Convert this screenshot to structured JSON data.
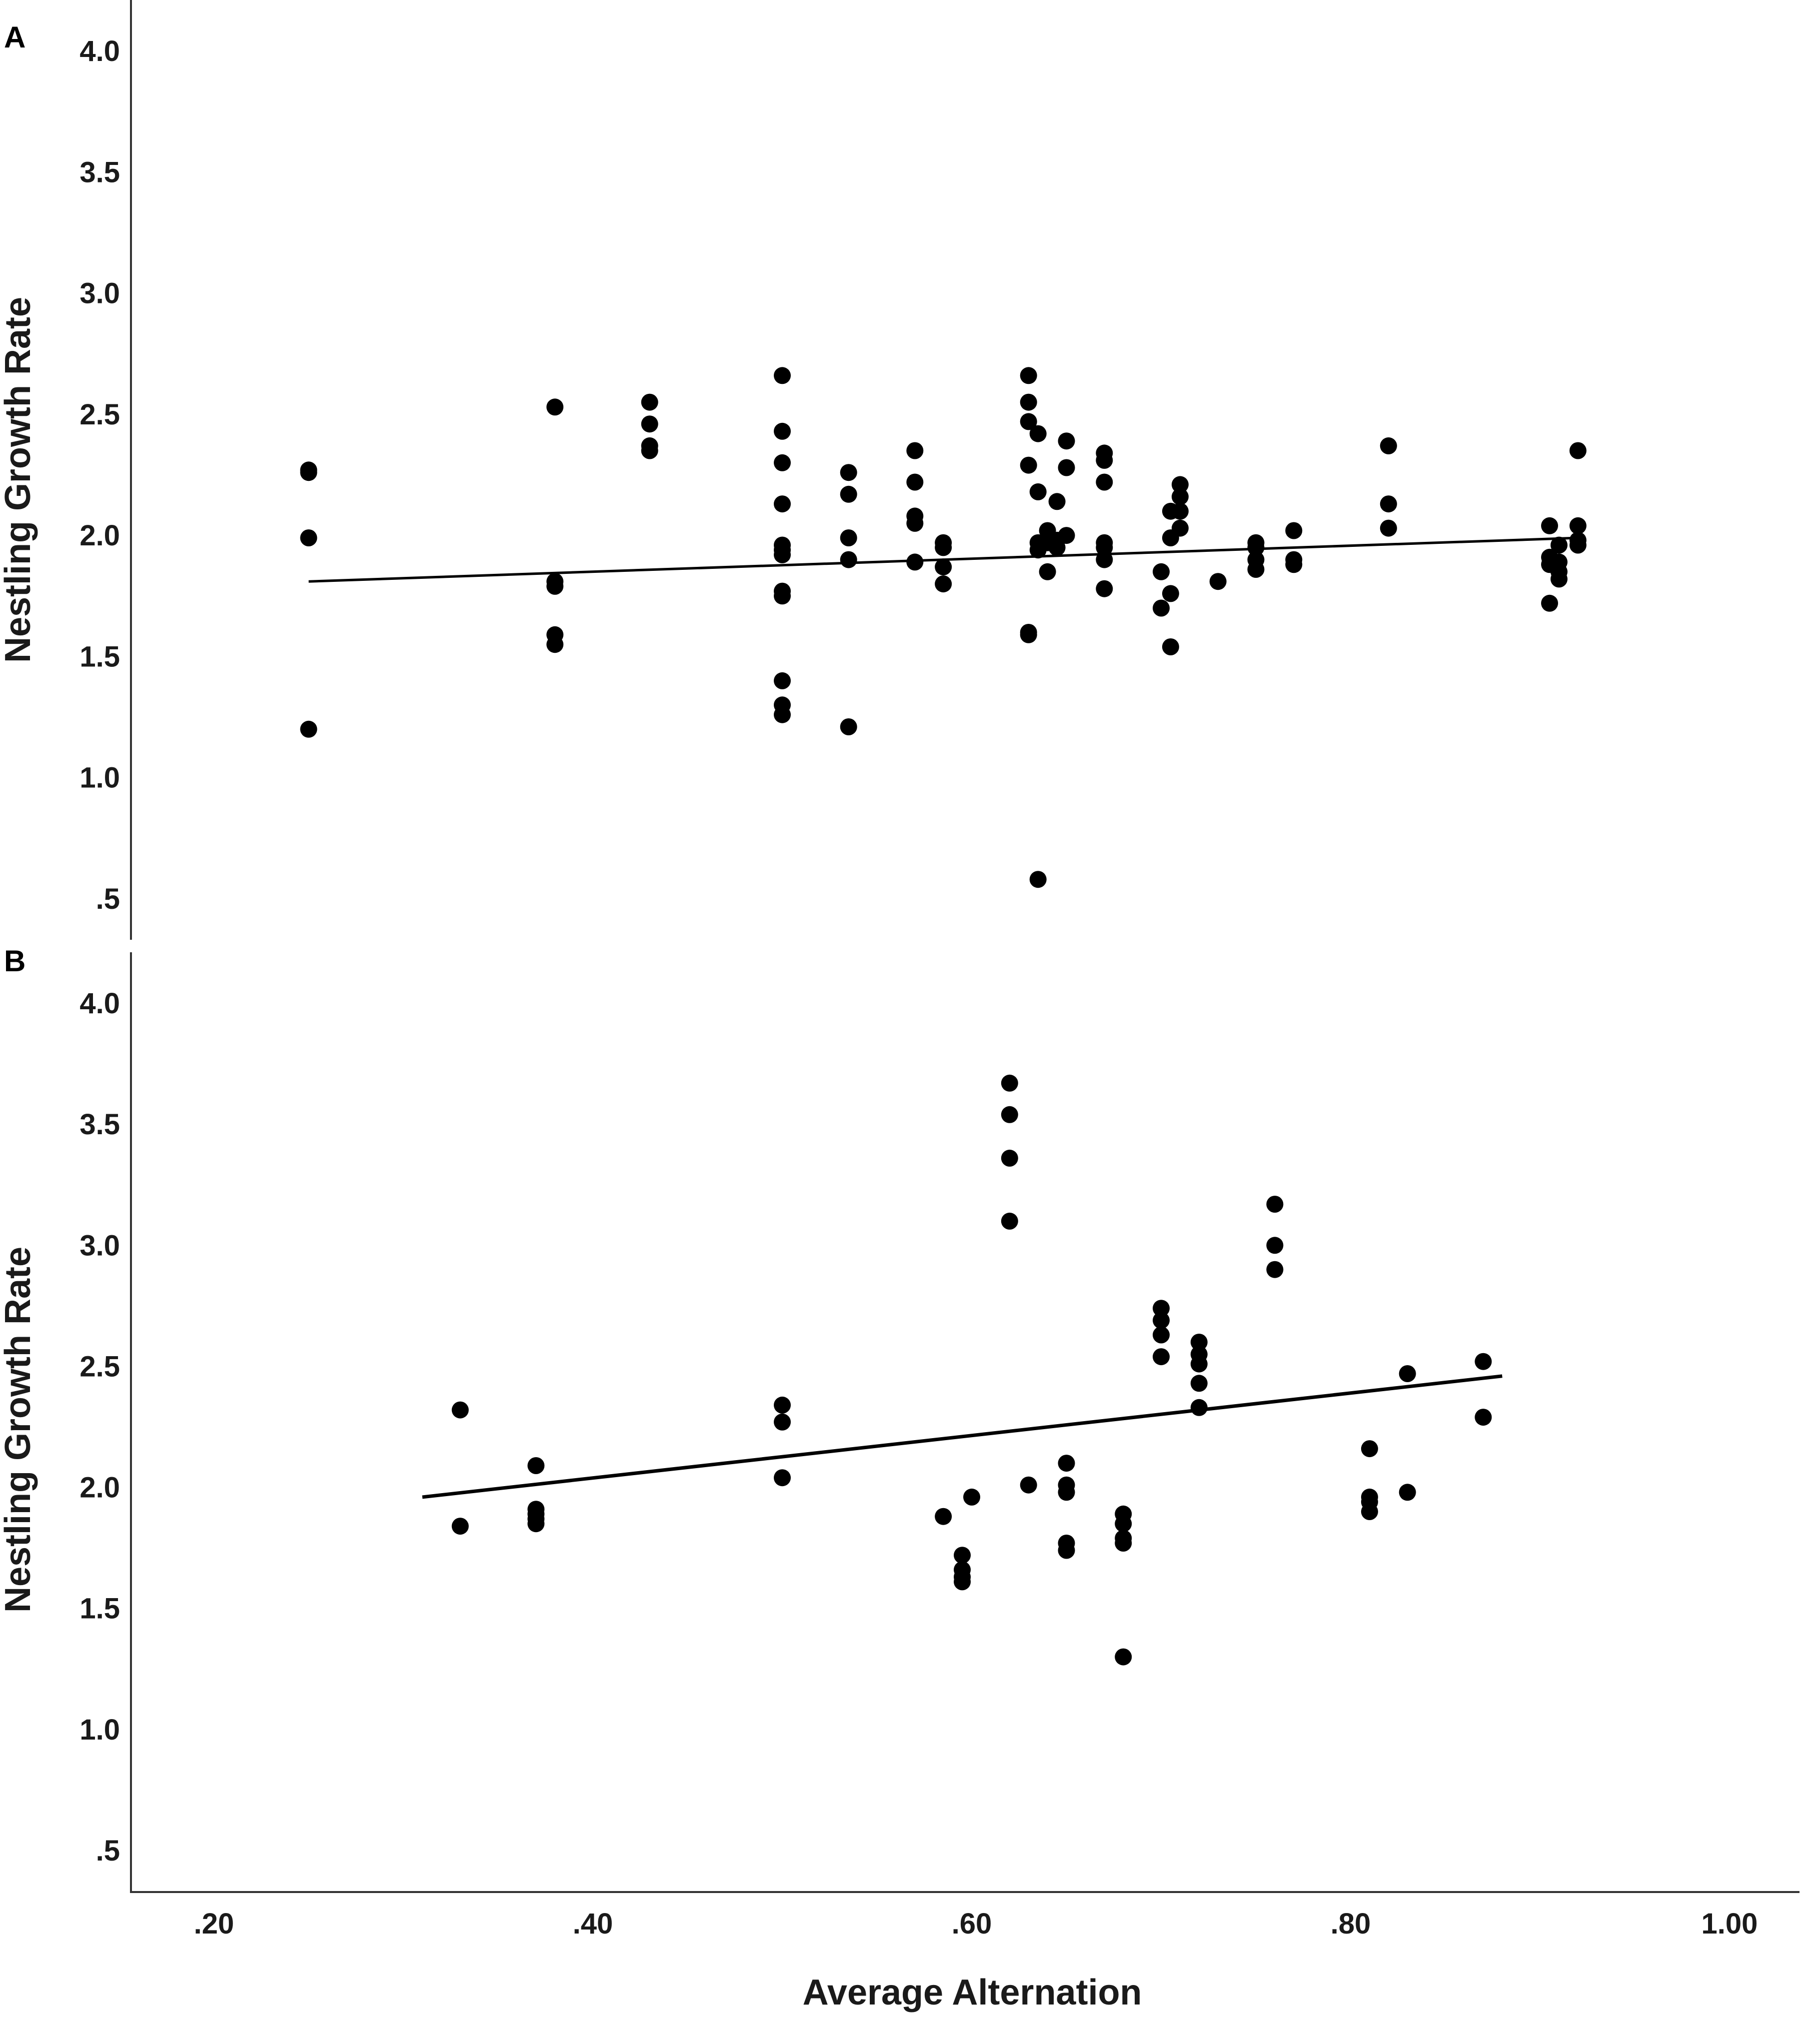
{
  "chart_data": [
    {
      "panel_label": "A",
      "type": "scatter",
      "ylabel": "Nestling Growth Rate",
      "xlabel": "",
      "xlim": [
        0.15,
        1.05
      ],
      "ylim": [
        0.35,
        4.2
      ],
      "y_ticks": [
        {
          "value": 0.5,
          "label": ".5"
        },
        {
          "value": 1.0,
          "label": "1.0"
        },
        {
          "value": 1.5,
          "label": "1.5"
        },
        {
          "value": 2.0,
          "label": "2.0"
        },
        {
          "value": 2.5,
          "label": "2.5"
        },
        {
          "value": 3.0,
          "label": "3.0"
        },
        {
          "value": 3.5,
          "label": "3.5"
        },
        {
          "value": 4.0,
          "label": "4.0"
        }
      ],
      "fit_line": {
        "x": [
          0.25,
          0.92
        ],
        "y": [
          1.81,
          1.99
        ]
      },
      "points": [
        [
          0.25,
          2.27
        ],
        [
          0.25,
          2.26
        ],
        [
          0.25,
          1.99
        ],
        [
          0.25,
          1.2
        ],
        [
          0.38,
          2.53
        ],
        [
          0.38,
          1.81
        ],
        [
          0.38,
          1.79
        ],
        [
          0.38,
          1.59
        ],
        [
          0.38,
          1.55
        ],
        [
          0.43,
          2.55
        ],
        [
          0.43,
          2.46
        ],
        [
          0.43,
          2.37
        ],
        [
          0.43,
          2.35
        ],
        [
          0.5,
          2.66
        ],
        [
          0.5,
          2.43
        ],
        [
          0.5,
          2.3
        ],
        [
          0.5,
          2.13
        ],
        [
          0.5,
          1.96
        ],
        [
          0.5,
          1.94
        ],
        [
          0.5,
          1.92
        ],
        [
          0.5,
          1.77
        ],
        [
          0.5,
          1.75
        ],
        [
          0.5,
          1.4
        ],
        [
          0.5,
          1.3
        ],
        [
          0.5,
          1.26
        ],
        [
          0.535,
          2.26
        ],
        [
          0.535,
          2.17
        ],
        [
          0.535,
          1.99
        ],
        [
          0.535,
          1.9
        ],
        [
          0.535,
          1.21
        ],
        [
          0.57,
          2.35
        ],
        [
          0.57,
          2.22
        ],
        [
          0.57,
          2.08
        ],
        [
          0.57,
          2.05
        ],
        [
          0.57,
          1.89
        ],
        [
          0.585,
          1.97
        ],
        [
          0.585,
          1.95
        ],
        [
          0.585,
          1.87
        ],
        [
          0.585,
          1.8
        ],
        [
          0.63,
          2.66
        ],
        [
          0.63,
          2.55
        ],
        [
          0.63,
          2.47
        ],
        [
          0.63,
          2.29
        ],
        [
          0.63,
          1.6
        ],
        [
          0.63,
          1.59
        ],
        [
          0.635,
          2.42
        ],
        [
          0.635,
          2.18
        ],
        [
          0.635,
          1.97
        ],
        [
          0.635,
          1.94
        ],
        [
          0.635,
          0.58
        ],
        [
          0.64,
          2.02
        ],
        [
          0.64,
          1.97
        ],
        [
          0.64,
          1.85
        ],
        [
          0.645,
          2.14
        ],
        [
          0.645,
          1.98
        ],
        [
          0.645,
          1.95
        ],
        [
          0.65,
          2.39
        ],
        [
          0.65,
          2.28
        ],
        [
          0.65,
          2.0
        ],
        [
          0.67,
          2.34
        ],
        [
          0.67,
          2.31
        ],
        [
          0.67,
          2.22
        ],
        [
          0.67,
          1.97
        ],
        [
          0.67,
          1.95
        ],
        [
          0.67,
          1.9
        ],
        [
          0.67,
          1.78
        ],
        [
          0.7,
          1.85
        ],
        [
          0.7,
          1.7
        ],
        [
          0.705,
          2.1
        ],
        [
          0.705,
          1.99
        ],
        [
          0.705,
          1.76
        ],
        [
          0.705,
          1.54
        ],
        [
          0.71,
          2.21
        ],
        [
          0.71,
          2.16
        ],
        [
          0.71,
          2.1
        ],
        [
          0.71,
          2.03
        ],
        [
          0.73,
          1.81
        ],
        [
          0.75,
          1.97
        ],
        [
          0.75,
          1.95
        ],
        [
          0.75,
          1.9
        ],
        [
          0.75,
          1.86
        ],
        [
          0.77,
          2.02
        ],
        [
          0.77,
          1.9
        ],
        [
          0.77,
          1.88
        ],
        [
          0.82,
          2.37
        ],
        [
          0.82,
          2.13
        ],
        [
          0.82,
          2.03
        ],
        [
          0.905,
          2.04
        ],
        [
          0.905,
          1.91
        ],
        [
          0.905,
          1.88
        ],
        [
          0.905,
          1.72
        ],
        [
          0.91,
          1.96
        ],
        [
          0.91,
          1.89
        ],
        [
          0.91,
          1.85
        ],
        [
          0.91,
          1.82
        ],
        [
          0.92,
          2.35
        ],
        [
          0.92,
          2.04
        ],
        [
          0.92,
          1.98
        ],
        [
          0.92,
          1.96
        ]
      ]
    },
    {
      "panel_label": "B",
      "type": "scatter",
      "ylabel": "Nestling Growth Rate",
      "xlabel": "Average Alternation",
      "xlim": [
        0.15,
        1.05
      ],
      "ylim": [
        0.35,
        4.2
      ],
      "x_ticks": [
        {
          "value": 0.2,
          "label": ".20"
        },
        {
          "value": 0.4,
          "label": ".40"
        },
        {
          "value": 0.6,
          "label": ".60"
        },
        {
          "value": 0.8,
          "label": ".80"
        },
        {
          "value": 1.0,
          "label": "1.00"
        }
      ],
      "y_ticks": [
        {
          "value": 0.5,
          "label": ".5"
        },
        {
          "value": 1.0,
          "label": "1.0"
        },
        {
          "value": 1.5,
          "label": "1.5"
        },
        {
          "value": 2.0,
          "label": "2.0"
        },
        {
          "value": 2.5,
          "label": "2.5"
        },
        {
          "value": 3.0,
          "label": "3.0"
        },
        {
          "value": 3.5,
          "label": "3.5"
        },
        {
          "value": 4.0,
          "label": "4.0"
        }
      ],
      "fit_line": {
        "x": [
          0.31,
          0.88
        ],
        "y": [
          1.96,
          2.46
        ]
      },
      "points": [
        [
          0.33,
          2.32
        ],
        [
          0.33,
          1.84
        ],
        [
          0.37,
          2.09
        ],
        [
          0.37,
          1.91
        ],
        [
          0.37,
          1.89
        ],
        [
          0.37,
          1.87
        ],
        [
          0.37,
          1.85
        ],
        [
          0.5,
          2.34
        ],
        [
          0.5,
          2.27
        ],
        [
          0.5,
          2.04
        ],
        [
          0.585,
          1.88
        ],
        [
          0.595,
          1.72
        ],
        [
          0.595,
          1.66
        ],
        [
          0.595,
          1.63
        ],
        [
          0.595,
          1.61
        ],
        [
          0.6,
          1.96
        ],
        [
          0.62,
          3.67
        ],
        [
          0.62,
          3.54
        ],
        [
          0.62,
          3.36
        ],
        [
          0.62,
          3.1
        ],
        [
          0.63,
          2.01
        ],
        [
          0.65,
          2.1
        ],
        [
          0.65,
          2.01
        ],
        [
          0.65,
          1.98
        ],
        [
          0.65,
          1.77
        ],
        [
          0.65,
          1.74
        ],
        [
          0.68,
          1.89
        ],
        [
          0.68,
          1.85
        ],
        [
          0.68,
          1.79
        ],
        [
          0.68,
          1.77
        ],
        [
          0.68,
          1.3
        ],
        [
          0.7,
          2.74
        ],
        [
          0.7,
          2.69
        ],
        [
          0.7,
          2.63
        ],
        [
          0.7,
          2.54
        ],
        [
          0.72,
          2.6
        ],
        [
          0.72,
          2.55
        ],
        [
          0.72,
          2.51
        ],
        [
          0.72,
          2.43
        ],
        [
          0.72,
          2.33
        ],
        [
          0.76,
          3.17
        ],
        [
          0.76,
          3.0
        ],
        [
          0.76,
          2.9
        ],
        [
          0.81,
          2.16
        ],
        [
          0.81,
          1.96
        ],
        [
          0.81,
          1.94
        ],
        [
          0.81,
          1.9
        ],
        [
          0.83,
          2.47
        ],
        [
          0.83,
          1.98
        ],
        [
          0.87,
          2.52
        ],
        [
          0.87,
          2.29
        ]
      ]
    }
  ]
}
